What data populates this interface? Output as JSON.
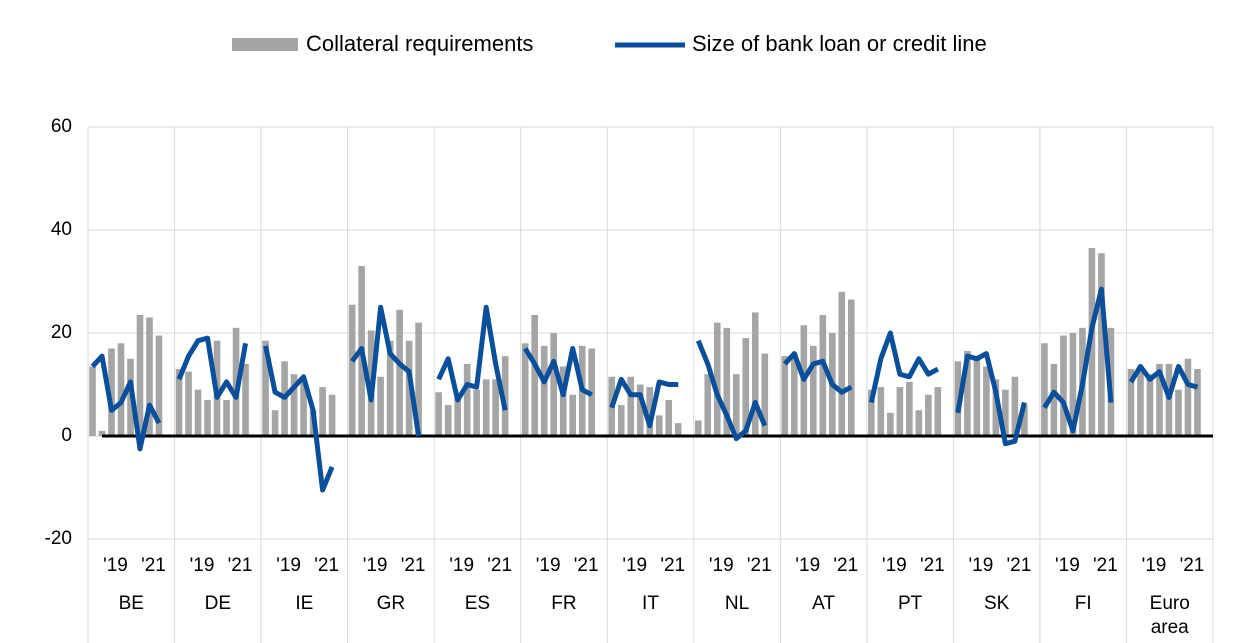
{
  "chart_data": {
    "type": "bar_line",
    "series": [
      {
        "name": "Collateral requirements",
        "color": "#a5a5a5",
        "type": "bar",
        "values": [
          13.5,
          1,
          17,
          18,
          15,
          23.5,
          23,
          19.5,
          13,
          12.5,
          9,
          7,
          18.5,
          7,
          21,
          14,
          18.5,
          5,
          14.5,
          12,
          11,
          5,
          9.5,
          8,
          25.5,
          33,
          20.5,
          11.5,
          18.5,
          24.5,
          18.5,
          22,
          8.5,
          6,
          8,
          14,
          9,
          11,
          11,
          15.5,
          18,
          23.5,
          17.5,
          20,
          13.5,
          8,
          17.5,
          17,
          11.5,
          6,
          11.5,
          10,
          9.5,
          4,
          7,
          2.5,
          3,
          12,
          22,
          21,
          12,
          19,
          24,
          16,
          15.5,
          16,
          21.5,
          17.5,
          23.5,
          20,
          28,
          26.5,
          9,
          9.5,
          4.5,
          9.5,
          10.5,
          5,
          8,
          9.5,
          14.5,
          16.5,
          15.5,
          13.5,
          11,
          9,
          11.5,
          6,
          18,
          14,
          19.5,
          20,
          21,
          36.5,
          35.5,
          21,
          13,
          13,
          12,
          14,
          14,
          9,
          15,
          13
        ]
      },
      {
        "name": "Size of bank loan or credit line",
        "color": "#0a4f9c",
        "type": "line",
        "values": [
          13.5,
          15.5,
          5,
          6.5,
          10.5,
          -2.5,
          6,
          2.5,
          11,
          15.5,
          18.5,
          19,
          7.5,
          10.5,
          7.5,
          18,
          17.5,
          8.5,
          7.5,
          9.5,
          11.5,
          5,
          -10.5,
          -6,
          14.5,
          17,
          7,
          25,
          16,
          14,
          12.5,
          0,
          11,
          15,
          7,
          10,
          9.5,
          25,
          14,
          5,
          17,
          14,
          10.5,
          14.5,
          8,
          17,
          9,
          8,
          5.5,
          11,
          8,
          8,
          2,
          10.5,
          10,
          10,
          18.5,
          14,
          8,
          4,
          -0.5,
          1,
          6.5,
          2,
          14,
          16,
          11,
          14,
          14.5,
          10,
          8.5,
          9.5,
          6.5,
          15,
          20,
          12,
          11.5,
          15,
          12,
          13,
          4.5,
          15.5,
          15,
          16,
          8.5,
          -1.5,
          -1,
          6.5,
          5.5,
          8.5,
          6.5,
          1,
          10,
          21,
          28.5,
          6.5,
          10.5,
          13.5,
          11,
          12.5,
          7.5,
          13.5,
          10,
          9.5
        ]
      }
    ],
    "categories": [
      null,
      null,
      "'19",
      null,
      null,
      null,
      "'21",
      null,
      null,
      null,
      "'19",
      null,
      null,
      null,
      "'21",
      null,
      null,
      null,
      "'19",
      null,
      null,
      null,
      "'21",
      null,
      null,
      null,
      "'19",
      null,
      null,
      null,
      "'21",
      null,
      null,
      null,
      "'19",
      null,
      null,
      null,
      "'21",
      null,
      null,
      null,
      "'19",
      null,
      null,
      null,
      "'21",
      null,
      null,
      null,
      "'19",
      null,
      null,
      null,
      "'21",
      null,
      null,
      null,
      "'19",
      null,
      null,
      null,
      "'21",
      null,
      null,
      null,
      "'19",
      null,
      null,
      null,
      "'21",
      null,
      null,
      null,
      "'19",
      null,
      null,
      null,
      "'21",
      null,
      null,
      null,
      "'19",
      null,
      null,
      null,
      "'21",
      null,
      null,
      null,
      "'19",
      null,
      null,
      null,
      "'21",
      null,
      null,
      null,
      "'19",
      null,
      null,
      null,
      "'21",
      null
    ],
    "groups": [
      "BE",
      "DE",
      "IE",
      "GR",
      "ES",
      "FR",
      "IT",
      "NL",
      "AT",
      "PT",
      "SK",
      "FI",
      "Euro area"
    ],
    "ylim": [
      -20,
      60
    ],
    "yticks": [
      -20,
      0,
      20,
      40,
      60
    ],
    "grid": true,
    "legend": "top"
  }
}
